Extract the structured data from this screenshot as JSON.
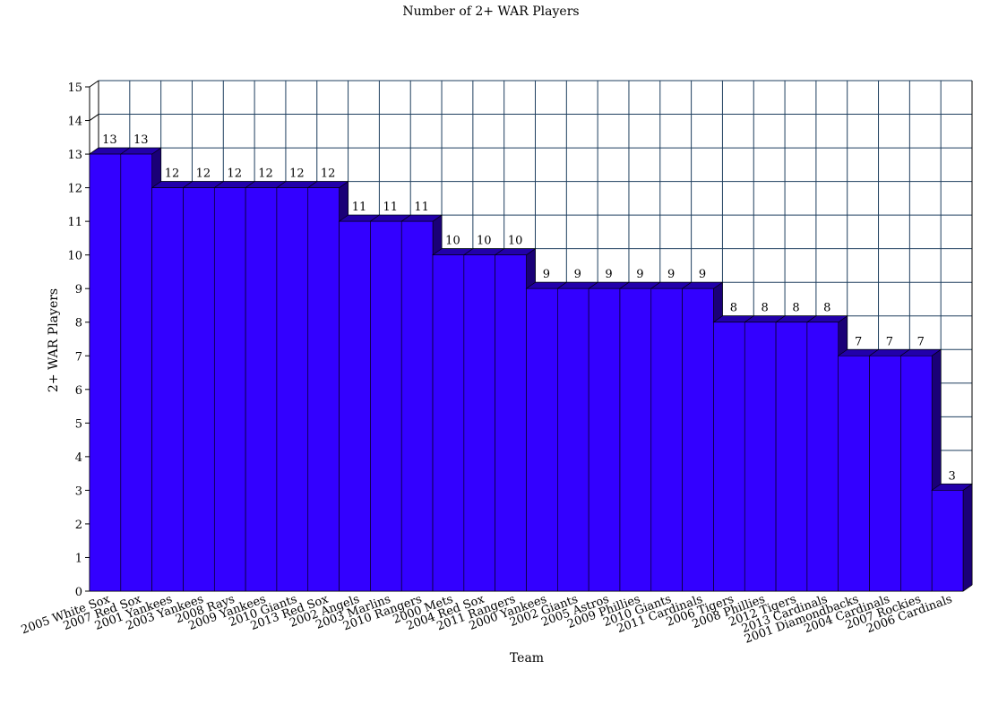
{
  "chart_data": {
    "type": "bar",
    "title": "Number of 2+ WAR Players",
    "xlabel": "Team",
    "ylabel": "2+ WAR Players",
    "ylim": [
      0,
      15
    ],
    "yticks": [
      0,
      1,
      2,
      3,
      4,
      5,
      6,
      7,
      8,
      9,
      10,
      11,
      12,
      13,
      14,
      15
    ],
    "grid": true,
    "legend": "none",
    "bar_color": "#3300ff",
    "categories": [
      "2005 White Sox",
      "2007 Red Sox",
      "2001 Yankees",
      "2003 Yankees",
      "2008 Rays",
      "2009 Yankees",
      "2010 Giants",
      "2013 Red Sox",
      "2002 Angels",
      "2003 Marlins",
      "2010 Rangers",
      "2000 Mets",
      "2004 Red Sox",
      "2011 Rangers",
      "2000 Yankees",
      "2002 Giants",
      "2005 Astros",
      "2009 Phillies",
      "2010 Giants",
      "2011 Cardinals",
      "2006 Tigers",
      "2008 Phillies",
      "2012 Tigers",
      "2013 Cardinals",
      "2001 Diamondbacks",
      "2004 Cardinals",
      "2007 Rockies",
      "2006 Cardinals"
    ],
    "values": [
      13,
      13,
      12,
      12,
      12,
      12,
      12,
      12,
      11,
      11,
      11,
      10,
      10,
      10,
      9,
      9,
      9,
      9,
      9,
      9,
      8,
      8,
      8,
      8,
      7,
      7,
      7,
      3
    ]
  }
}
